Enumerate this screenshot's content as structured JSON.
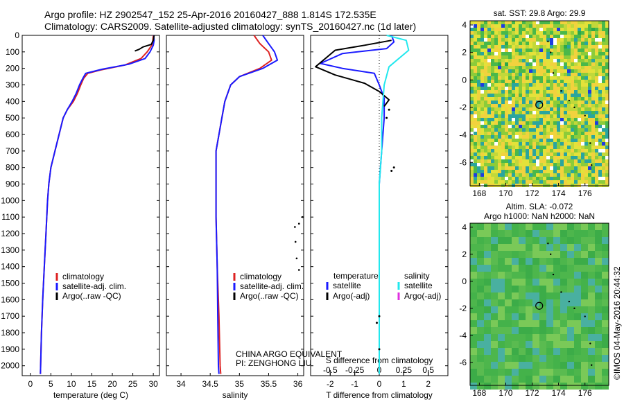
{
  "header": {
    "line1": "Argo profile: HZ 2902547_152 25-Apr-2016 20160427_888 1.814S 172.535E",
    "line2": "Climatology: CARS2009. Satellite-adjusted climatology: synTS_20160427.nc (1d later)"
  },
  "colors": {
    "climatology": "#dd2222",
    "satellite": "#1a1aff",
    "argo": "#000000",
    "salinity_sat": "#22e8ee",
    "salinity_argo": "#e030e0"
  },
  "credit": {
    "org": "CHINA ARGO EQUIVALENT",
    "pi": "PI: ZENGHONG LIU"
  },
  "stamp": "©IMOS 04-May-2016 20:44:32",
  "chart_data": [
    {
      "type": "line",
      "name": "temperature-profile",
      "xlabel": "temperature (deg C)",
      "x_ticks": [
        0,
        5,
        10,
        15,
        20,
        25,
        30
      ],
      "xlim": [
        -2,
        31.5
      ],
      "ylim": [
        2060,
        0
      ],
      "y_ticks": [
        0,
        100,
        200,
        300,
        400,
        500,
        600,
        700,
        800,
        900,
        1000,
        1100,
        1200,
        1300,
        1400,
        1500,
        1600,
        1700,
        1800,
        1900,
        2000
      ],
      "legend": [
        "climatology",
        "satellite-adj. clim.",
        "Argo(..raw -QC)"
      ],
      "series": [
        {
          "name": "climatology",
          "color": "#dd2222",
          "points": [
            [
              30.0,
              0
            ],
            [
              29.9,
              30
            ],
            [
              29.6,
              60
            ],
            [
              28.5,
              100
            ],
            [
              27.0,
              140
            ],
            [
              23.0,
              180
            ],
            [
              17.0,
              210
            ],
            [
              14.0,
              230
            ],
            [
              13.0,
              260
            ],
            [
              12.3,
              300
            ],
            [
              11.5,
              350
            ],
            [
              10.5,
              400
            ],
            [
              9.0,
              450
            ],
            [
              8.0,
              500
            ],
            [
              7.0,
              600
            ],
            [
              6.0,
              700
            ],
            [
              5.0,
              800
            ],
            [
              4.5,
              900
            ],
            [
              4.2,
              1000
            ],
            [
              3.8,
              1200
            ],
            [
              3.4,
              1400
            ],
            [
              3.0,
              1600
            ],
            [
              2.7,
              1800
            ],
            [
              2.5,
              2000
            ],
            [
              2.45,
              2050
            ]
          ]
        },
        {
          "name": "satellite-adj. clim.",
          "color": "#1a1aff",
          "points": [
            [
              30.1,
              0
            ],
            [
              30.2,
              30
            ],
            [
              30.0,
              60
            ],
            [
              29.2,
              100
            ],
            [
              28.0,
              140
            ],
            [
              24.0,
              175
            ],
            [
              17.5,
              205
            ],
            [
              13.5,
              230
            ],
            [
              12.8,
              260
            ],
            [
              12.0,
              300
            ],
            [
              11.2,
              350
            ],
            [
              10.2,
              400
            ],
            [
              9.0,
              450
            ],
            [
              8.0,
              500
            ],
            [
              7.0,
              600
            ],
            [
              6.0,
              700
            ],
            [
              5.0,
              800
            ],
            [
              4.5,
              900
            ],
            [
              4.2,
              1000
            ],
            [
              3.8,
              1200
            ],
            [
              3.4,
              1400
            ],
            [
              3.0,
              1600
            ],
            [
              2.7,
              1800
            ],
            [
              2.5,
              2000
            ],
            [
              2.45,
              2050
            ]
          ]
        },
        {
          "name": "Argo(..raw -QC)",
          "color": "#000000",
          "points": [
            [
              30.2,
              0
            ],
            [
              30.0,
              30
            ],
            [
              29.5,
              55
            ],
            [
              27.5,
              70
            ],
            [
              26.5,
              85
            ],
            [
              25.5,
              95
            ]
          ]
        }
      ]
    },
    {
      "type": "line",
      "name": "salinity-profile",
      "xlabel": "salinity",
      "x_ticks": [
        34,
        34.5,
        35,
        35.5,
        36
      ],
      "xlim": [
        33.75,
        36.1
      ],
      "ylim": [
        2060,
        0
      ],
      "legend": [
        "climatology",
        "satellite-adj. clim.",
        "Argo(..raw -QC)"
      ],
      "series": [
        {
          "name": "climatology",
          "color": "#dd2222",
          "points": [
            [
              35.25,
              0
            ],
            [
              35.35,
              50
            ],
            [
              35.5,
              100
            ],
            [
              35.55,
              150
            ],
            [
              35.35,
              200
            ],
            [
              35.0,
              250
            ],
            [
              34.85,
              300
            ],
            [
              34.75,
              400
            ],
            [
              34.7,
              500
            ],
            [
              34.65,
              600
            ],
            [
              34.6,
              700
            ],
            [
              34.6,
              900
            ],
            [
              34.6,
              1100
            ],
            [
              34.62,
              1400
            ],
            [
              34.65,
              1700
            ],
            [
              34.67,
              2000
            ],
            [
              34.68,
              2050
            ]
          ]
        },
        {
          "name": "satellite-adj. clim.",
          "color": "#1a1aff",
          "points": [
            [
              35.4,
              0
            ],
            [
              35.5,
              50
            ],
            [
              35.6,
              100
            ],
            [
              35.65,
              150
            ],
            [
              35.4,
              200
            ],
            [
              35.0,
              250
            ],
            [
              34.85,
              300
            ],
            [
              34.75,
              400
            ],
            [
              34.7,
              500
            ],
            [
              34.65,
              600
            ],
            [
              34.6,
              700
            ],
            [
              34.6,
              900
            ],
            [
              34.6,
              1100
            ],
            [
              34.62,
              1400
            ],
            [
              34.63,
              1700
            ],
            [
              34.64,
              2000
            ],
            [
              34.65,
              2050
            ]
          ]
        }
      ]
    },
    {
      "type": "line",
      "name": "difference-profile",
      "xlabel": "T difference from climatology",
      "top_label": "S difference from climatology",
      "x_ticks": [
        -2,
        -1,
        0,
        1,
        2
      ],
      "s_ticks": [
        "-0.5",
        "-0.25",
        "0",
        "0.25",
        "0.5"
      ],
      "xlim": [
        -2.8,
        2.8
      ],
      "ylim": [
        2060,
        0
      ],
      "legend_titles": [
        "temperature",
        "salinity"
      ],
      "legend": [
        "satellite",
        "Argo(-adj)",
        "satellite",
        "Argo(-adj)"
      ],
      "series": [
        {
          "name": "satellite",
          "color": "#1a1aff",
          "points": [
            [
              0.5,
              0
            ],
            [
              0.6,
              40
            ],
            [
              0.3,
              80
            ],
            [
              -1.5,
              110
            ],
            [
              -2.4,
              170
            ],
            [
              -1.5,
              200
            ],
            [
              -0.2,
              230
            ],
            [
              0.0,
              300
            ],
            [
              0.2,
              380
            ],
            [
              0.2,
              500
            ],
            [
              0.1,
              700
            ],
            [
              0.0,
              900
            ],
            [
              0.0,
              1100
            ],
            [
              0.0,
              1400
            ],
            [
              0.0,
              1700
            ],
            [
              0.0,
              2050
            ]
          ]
        },
        {
          "name": "Argo(-adj)",
          "color": "#000000",
          "points": [
            [
              0.5,
              30
            ],
            [
              -0.6,
              60
            ],
            [
              -1.8,
              90
            ],
            [
              -2.6,
              190
            ],
            [
              -1.8,
              240
            ],
            [
              -0.6,
              290
            ],
            [
              0.0,
              340
            ],
            [
              0.4,
              390
            ],
            [
              0.2,
              430
            ]
          ]
        },
        {
          "name": "satellite",
          "color": "#22e8ee",
          "points": [
            [
              0.3,
              0
            ],
            [
              1.1,
              30
            ],
            [
              1.2,
              90
            ],
            [
              0.4,
              190
            ],
            [
              0.2,
              300
            ],
            [
              0.1,
              500
            ],
            [
              0.1,
              700
            ],
            [
              0.0,
              900
            ],
            [
              0.0,
              1200
            ],
            [
              0.0,
              1500
            ],
            [
              0.0,
              2050
            ]
          ]
        }
      ]
    },
    {
      "type": "heatmap",
      "name": "sst-map",
      "title": "sat. SST: 29.8 Argo: 29.9",
      "x_ticks": [
        168,
        170,
        172,
        174,
        176
      ],
      "y_ticks": [
        4,
        2,
        0,
        -2,
        -4,
        -6
      ],
      "xlim": [
        167.3,
        177.8
      ],
      "ylim": [
        -7.7,
        4.3
      ],
      "marker": {
        "lon": 172.535,
        "lat": -1.814
      }
    },
    {
      "type": "heatmap",
      "name": "sla-map",
      "title": "Altim. SLA: -0.072",
      "subtitle": "Argo h1000: NaN h2000: NaN",
      "x_ticks": [
        168,
        170,
        172,
        174,
        176
      ],
      "y_ticks": [
        4,
        2,
        0,
        -2,
        -4,
        -6
      ],
      "xlim": [
        167.3,
        177.8
      ],
      "ylim": [
        -7.7,
        4.3
      ],
      "marker": {
        "lon": 172.535,
        "lat": -1.814
      }
    }
  ]
}
